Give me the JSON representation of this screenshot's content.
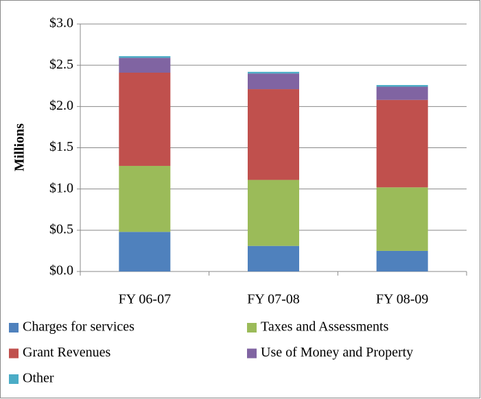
{
  "chart_data": {
    "type": "stacked_bar",
    "ylabel": "Millions",
    "categories": [
      "FY 06-07",
      "FY 07-08",
      "FY 08-09"
    ],
    "series": [
      {
        "name": "Charges for services",
        "color": "#4f81bd",
        "values": [
          0.48,
          0.31,
          0.25
        ]
      },
      {
        "name": "Taxes and Assessments",
        "color": "#9bbb59",
        "values": [
          0.8,
          0.8,
          0.77
        ]
      },
      {
        "name": "Grant Revenues",
        "color": "#c0504d",
        "values": [
          1.13,
          1.1,
          1.06
        ]
      },
      {
        "name": "Use of Money and Property",
        "color": "#8064a2",
        "values": [
          0.18,
          0.19,
          0.16
        ]
      },
      {
        "name": "Other",
        "color": "#4bacc6",
        "values": [
          0.02,
          0.02,
          0.02
        ]
      }
    ],
    "ylim": [
      0,
      3
    ],
    "yticks": [
      {
        "value": 0,
        "label": "$0.0"
      },
      {
        "value": 0.5,
        "label": "$0.5"
      },
      {
        "value": 1,
        "label": "$1.0"
      },
      {
        "value": 1.5,
        "label": "$1.5"
      },
      {
        "value": 2,
        "label": "$2.0"
      },
      {
        "value": 2.5,
        "label": "$2.5"
      },
      {
        "value": 3,
        "label": "$3.0"
      }
    ],
    "grid": true
  }
}
